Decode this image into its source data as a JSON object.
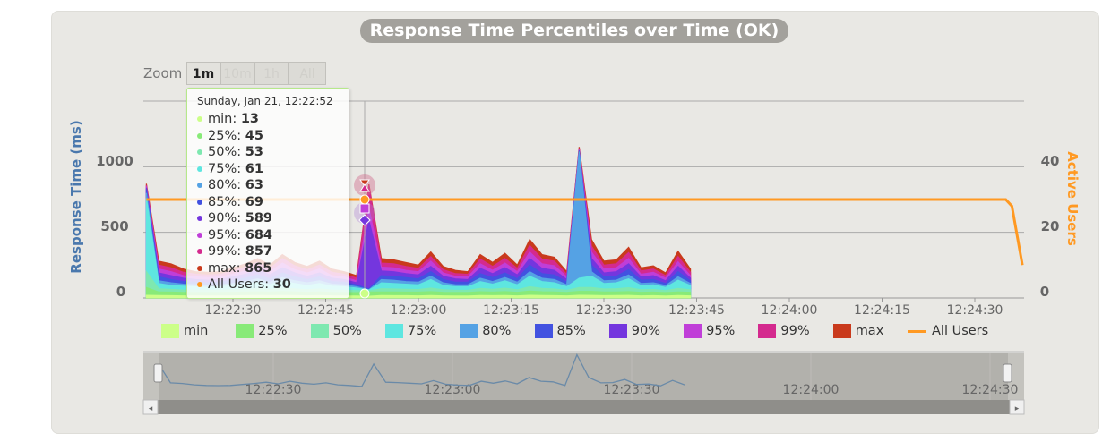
{
  "title": "Response Time Percentiles over Time (OK)",
  "zoom": {
    "label": "Zoom",
    "buttons": [
      "1m",
      "10m",
      "1h",
      "All"
    ],
    "selected": "1m"
  },
  "tooltip": {
    "header": "Sunday, Jan 21, 12:22:52",
    "rows": [
      {
        "label": "min:",
        "value": "13"
      },
      {
        "label": "25%:",
        "value": "45"
      },
      {
        "label": "50%:",
        "value": "53"
      },
      {
        "label": "75%:",
        "value": "61"
      },
      {
        "label": "80%:",
        "value": "63"
      },
      {
        "label": "85%:",
        "value": "69"
      },
      {
        "label": "90%:",
        "value": "589"
      },
      {
        "label": "95%:",
        "value": "684"
      },
      {
        "label": "99%:",
        "value": "857"
      },
      {
        "label": "max:",
        "value": "865"
      },
      {
        "label": "All Users:",
        "value": "30"
      }
    ]
  },
  "chart_data": {
    "type": "area",
    "title": "Response Time Percentiles over Time (OK)",
    "xlabel": "",
    "ylabel": "Response Time (ms)",
    "y2label": "Active Users",
    "ylim": [
      0,
      1500
    ],
    "y2lim": [
      0,
      60
    ],
    "yticks": [
      "0",
      "500",
      "1000"
    ],
    "y2ticks": [
      "0",
      "20",
      "40"
    ],
    "xticks": [
      "12:22:30",
      "12:22:45",
      "12:23:00",
      "12:23:15",
      "12:23:30",
      "12:23:45",
      "12:24:00",
      "12:24:15",
      "12:24:30"
    ],
    "xtick_seconds": [
      30,
      45,
      60,
      75,
      90,
      105,
      120,
      135,
      150
    ],
    "x_unit": "seconds after 12:22:00",
    "x": [
      16,
      18,
      20,
      22,
      24,
      26,
      28,
      30,
      32,
      34,
      36,
      38,
      40,
      42,
      44,
      46,
      48,
      50,
      52,
      54,
      56,
      58,
      60,
      62,
      64,
      66,
      68,
      70,
      72,
      74,
      76,
      78,
      80,
      82,
      84,
      86,
      88,
      90,
      92,
      94,
      96,
      98,
      100,
      102,
      104
    ],
    "series": [
      {
        "name": "max",
        "color": "#c93a1c",
        "values": [
          870,
          280,
          260,
          220,
          200,
          195,
          200,
          230,
          260,
          300,
          250,
          330,
          270,
          240,
          280,
          220,
          200,
          170,
          865,
          300,
          290,
          270,
          250,
          350,
          240,
          210,
          200,
          330,
          270,
          340,
          250,
          445,
          330,
          310,
          200,
          1150,
          445,
          280,
          290,
          385,
          230,
          245,
          190,
          355,
          220
        ]
      },
      {
        "name": "99%",
        "color": "#d42a8e",
        "values": [
          860,
          250,
          230,
          195,
          180,
          175,
          180,
          205,
          235,
          270,
          225,
          300,
          245,
          215,
          250,
          195,
          180,
          150,
          857,
          265,
          260,
          240,
          225,
          315,
          215,
          185,
          180,
          295,
          240,
          300,
          225,
          400,
          295,
          280,
          180,
          1140,
          395,
          250,
          260,
          345,
          205,
          220,
          170,
          315,
          195
        ]
      },
      {
        "name": "95%",
        "color": "#c03ed8",
        "values": [
          850,
          220,
          200,
          170,
          160,
          155,
          160,
          180,
          205,
          240,
          200,
          265,
          215,
          190,
          220,
          170,
          160,
          130,
          684,
          235,
          230,
          210,
          200,
          280,
          190,
          165,
          160,
          260,
          210,
          265,
          200,
          350,
          260,
          245,
          160,
          1130,
          350,
          220,
          230,
          300,
          180,
          195,
          150,
          275,
          170
        ]
      },
      {
        "name": "90%",
        "color": "#7436de",
        "values": [
          840,
          190,
          170,
          150,
          140,
          135,
          140,
          160,
          180,
          210,
          175,
          230,
          190,
          165,
          190,
          150,
          140,
          115,
          589,
          205,
          200,
          185,
          175,
          240,
          165,
          145,
          140,
          225,
          185,
          230,
          175,
          300,
          225,
          210,
          140,
          1125,
          300,
          190,
          200,
          260,
          160,
          170,
          130,
          240,
          150
        ]
      },
      {
        "name": "85%",
        "color": "#4252e0",
        "values": [
          830,
          160,
          140,
          125,
          120,
          115,
          120,
          135,
          150,
          175,
          145,
          190,
          160,
          140,
          160,
          125,
          120,
          100,
          69,
          170,
          165,
          155,
          145,
          200,
          140,
          120,
          120,
          185,
          155,
          190,
          145,
          250,
          185,
          175,
          120,
          1120,
          250,
          160,
          165,
          215,
          135,
          140,
          110,
          200,
          130
        ]
      },
      {
        "name": "80%",
        "color": "#55a2e4",
        "values": [
          800,
          130,
          115,
          105,
          100,
          95,
          100,
          110,
          125,
          145,
          120,
          155,
          130,
          115,
          130,
          105,
          100,
          85,
          63,
          140,
          135,
          125,
          120,
          165,
          115,
          100,
          100,
          150,
          125,
          155,
          120,
          200,
          150,
          140,
          100,
          1115,
          200,
          130,
          135,
          175,
          110,
          115,
          95,
          160,
          110
        ]
      },
      {
        "name": "75%",
        "color": "#5ee6e0",
        "values": [
          760,
          110,
          95,
          90,
          85,
          80,
          85,
          95,
          105,
          120,
          100,
          130,
          110,
          95,
          110,
          90,
          85,
          75,
          61,
          115,
          110,
          105,
          100,
          140,
          95,
          85,
          85,
          125,
          105,
          130,
          100,
          165,
          125,
          115,
          85,
          150,
          165,
          110,
          115,
          145,
          95,
          100,
          80,
          135,
          95
        ]
      },
      {
        "name": "50%",
        "color": "#7ee8b0",
        "values": [
          200,
          70,
          65,
          60,
          60,
          58,
          60,
          62,
          65,
          70,
          65,
          75,
          68,
          62,
          68,
          60,
          58,
          55,
          53,
          70,
          68,
          66,
          64,
          75,
          62,
          58,
          58,
          72,
          66,
          74,
          62,
          85,
          72,
          68,
          58,
          80,
          80,
          68,
          70,
          78,
          62,
          64,
          56,
          72,
          62
        ]
      },
      {
        "name": "25%",
        "color": "#88ea78",
        "values": [
          80,
          45,
          44,
          42,
          42,
          41,
          42,
          43,
          44,
          46,
          44,
          48,
          45,
          43,
          45,
          42,
          41,
          40,
          45,
          46,
          45,
          44,
          44,
          48,
          43,
          42,
          42,
          47,
          44,
          48,
          43,
          52,
          47,
          45,
          42,
          50,
          50,
          45,
          46,
          48,
          43,
          44,
          41,
          46,
          43
        ]
      },
      {
        "name": "min",
        "color": "#ccff88",
        "values": [
          20,
          18,
          17,
          16,
          16,
          15,
          16,
          16,
          17,
          18,
          17,
          18,
          17,
          16,
          17,
          16,
          15,
          15,
          13,
          18,
          17,
          17,
          16,
          18,
          16,
          15,
          15,
          18,
          17,
          18,
          16,
          20,
          18,
          17,
          16,
          20,
          19,
          17,
          18,
          19,
          16,
          17,
          15,
          18,
          16
        ]
      }
    ],
    "active_users": {
      "name": "All Users",
      "color": "#ff9922",
      "x": [
        16,
        155,
        156,
        157.7
      ],
      "values": [
        30,
        30,
        28,
        10
      ]
    },
    "legend": [
      "min",
      "25%",
      "50%",
      "75%",
      "80%",
      "85%",
      "90%",
      "95%",
      "99%",
      "max",
      "All Users"
    ],
    "legend_colors": [
      "#ccff88",
      "#88ea78",
      "#7ee8b0",
      "#5ee6e0",
      "#55a2e4",
      "#4252e0",
      "#7436de",
      "#c03ed8",
      "#d42a8e",
      "#c93a1c",
      "#ff9922"
    ],
    "legend_placement": "bottom",
    "grid": true,
    "navigator_xticks": [
      "12:22:30",
      "12:23:00",
      "12:23:30",
      "12:24:00",
      "12:24:30"
    ]
  }
}
